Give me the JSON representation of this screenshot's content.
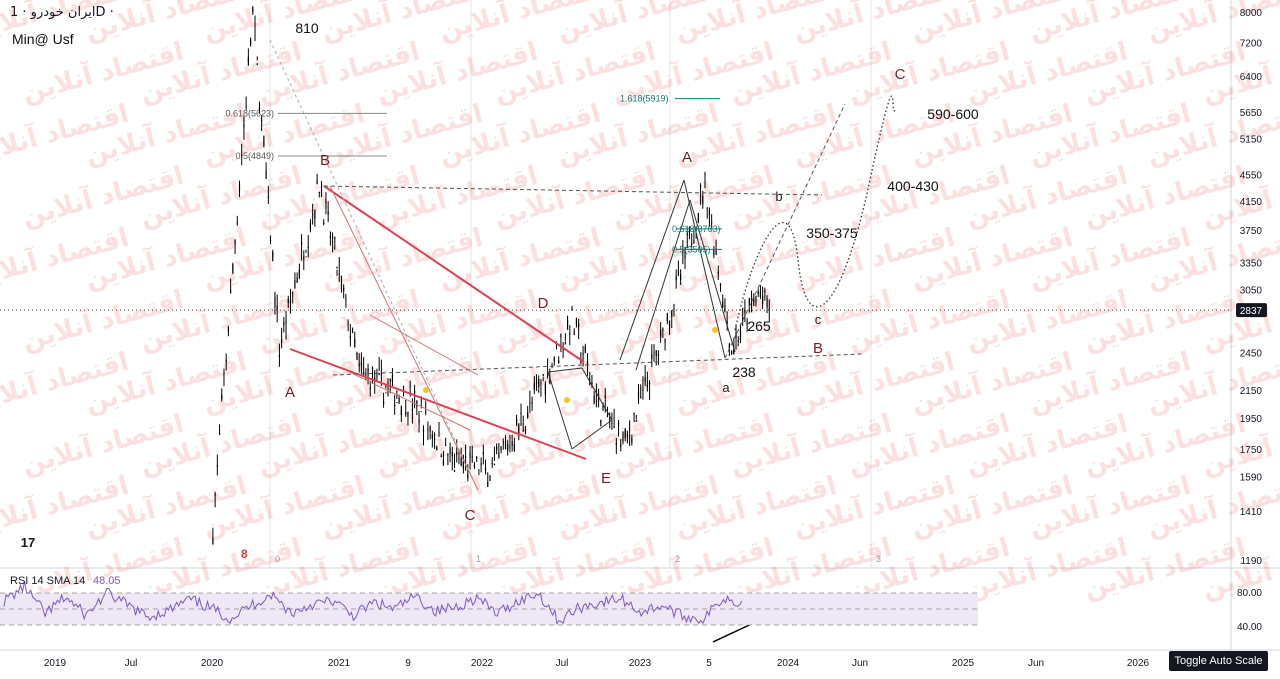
{
  "header": {
    "symbol": "ایران خودرو",
    "separator": "·",
    "interval": "1D",
    "author": "Min@ Usf"
  },
  "watermark": "اقتصاد آنلاین",
  "colors": {
    "candle": "#000000",
    "red_line": "#d94452",
    "fib_text": "#0d7e73",
    "label_dark": "#7a1c26",
    "rsi_line": "#7e57c2",
    "rsi_band": "#ede7f6",
    "last_price_bg": "#131722",
    "marker": "#f7c325",
    "badge": "#e53935"
  },
  "chart_data": {
    "type": "candlestick",
    "symbol": "ایران خودرو",
    "interval": "1D",
    "price_scale": "log",
    "y_ticks": [
      8000,
      7200,
      6400,
      5650,
      5150,
      4550,
      4150,
      3750,
      3350,
      3050,
      2450,
      2150,
      1950,
      1750,
      1590,
      1410,
      1190
    ],
    "last_price": 2837,
    "x_ticks": [
      "2019",
      "Jul",
      "2020",
      "2021",
      "9",
      "2022",
      "Jul",
      "2023",
      "5",
      "2024",
      "Jun",
      "2025",
      "Jun",
      "2026"
    ],
    "grid_markers": [
      "0",
      "1",
      "2",
      "3"
    ],
    "fib_levels": [
      {
        "label": "1.618(5919)",
        "value": 5919
      },
      {
        "label": "0.618(5623)",
        "value": 5623
      },
      {
        "label": "0.5(4849)",
        "value": 4849
      },
      {
        "label": "0.618(3763)",
        "value": 3763
      },
      {
        "label": "0.5(3505)",
        "value": 3505
      }
    ],
    "price_path_approx": [
      {
        "date": "2020-02",
        "price": 1340
      },
      {
        "date": "2020-05",
        "price": 8000
      },
      {
        "date": "2020-07",
        "price": 2500
      },
      {
        "date": "2020-10",
        "price": 4400
      },
      {
        "date": "2021-01",
        "price": 2300
      },
      {
        "date": "2021-05",
        "price": 2050
      },
      {
        "date": "2021-08",
        "price": 1680
      },
      {
        "date": "2021-11",
        "price": 1620
      },
      {
        "date": "2022-02",
        "price": 2050
      },
      {
        "date": "2022-05",
        "price": 2750
      },
      {
        "date": "2022-07",
        "price": 2050
      },
      {
        "date": "2022-09",
        "price": 1780
      },
      {
        "date": "2022-12",
        "price": 2650
      },
      {
        "date": "2023-02",
        "price": 3700
      },
      {
        "date": "2023-03",
        "price": 4400
      },
      {
        "date": "2023-05",
        "price": 2470
      },
      {
        "date": "2023-07",
        "price": 3000
      },
      {
        "date": "2023-08",
        "price": 2837
      }
    ],
    "wave_labels": [
      "A",
      "B",
      "C",
      "D",
      "E",
      "A",
      "a",
      "b",
      "c",
      "B",
      "C"
    ],
    "price_annotations": [
      "810",
      "265",
      "238",
      "350-375",
      "400-430",
      "590-600"
    ],
    "projection_note": "dotted and dashed projected paths toward 590-600"
  },
  "rsi": {
    "title": "RSI 14 SMA 14",
    "value": "48.05",
    "y_ticks": [
      "80.00",
      "40.00"
    ],
    "overbought": 70,
    "oversold": 30,
    "series_approx": [
      60,
      78,
      44,
      65,
      42,
      70,
      55,
      40,
      48,
      62,
      52,
      38,
      54,
      68,
      45,
      56,
      60,
      42,
      58,
      50,
      66,
      47,
      53,
      64,
      44,
      60,
      70,
      35,
      52,
      58,
      63,
      46,
      55,
      41,
      37,
      64,
      58
    ],
    "trendline_note": "rising support line under late RSI lows"
  },
  "toolbar": {
    "toggle_label": "Toggle Auto Scale"
  },
  "logo_text": "17"
}
